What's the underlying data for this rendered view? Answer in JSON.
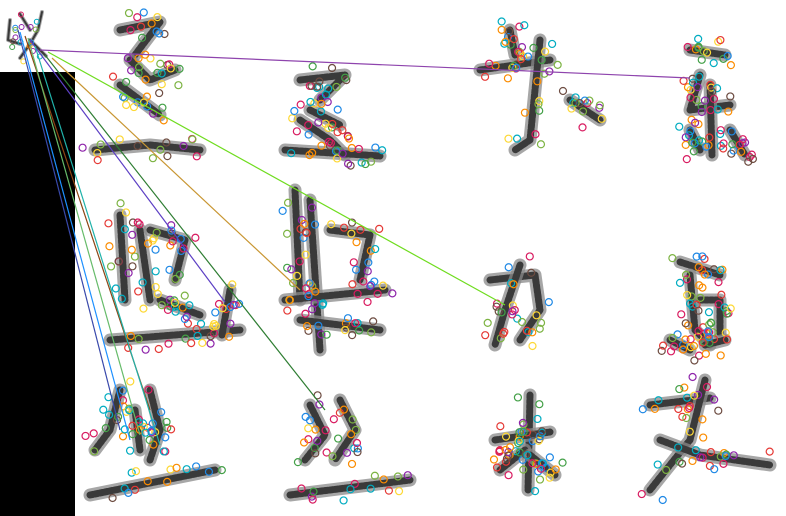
{
  "figure": {
    "query_glyph": "以",
    "candidate_glyphs": [
      "丞",
      "丞",
      "守",
      "东",
      "监",
      "监",
      "力",
      "豆",
      "丛",
      "丝",
      "木",
      "支"
    ],
    "ink_color": "#3a3a3a",
    "match_line_colors": [
      "#8e44ad",
      "#6fdc1e",
      "#c89632",
      "#2e7d32",
      "#5c3fc4",
      "#1e90ff",
      "#8b4513",
      "#20b2aa",
      "#66bb6a",
      "#3949ab"
    ],
    "keypoint_colors": [
      "#e53935",
      "#43a047",
      "#1e88e5",
      "#8e24aa",
      "#fdd835",
      "#00acc1",
      "#fb8c00",
      "#6d4c41",
      "#d81b60",
      "#7cb342"
    ]
  }
}
